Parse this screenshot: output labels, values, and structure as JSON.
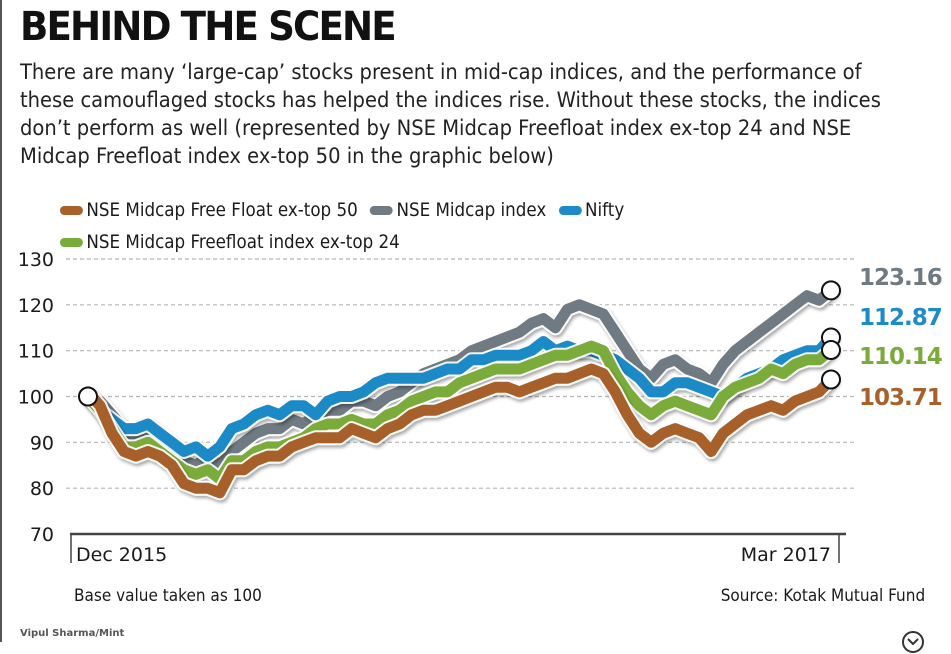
{
  "header": {
    "title": "BEHIND THE SCENE",
    "subtitle_lines": [
      "There are many ‘large-cap’ stocks present in mid-cap indices, and the performance of",
      "these camouflaged stocks has helped the indices rise. Without these stocks, the indices",
      "don’t perform as well (represented by NSE Midcap Freefloat index ex-top 24 and NSE",
      "Midcap Freefloat index ex-top 50 in the graphic below)"
    ]
  },
  "legend": {
    "items": [
      {
        "label": "NSE Midcap Free Float ex-top 50",
        "color": "#a8612b"
      },
      {
        "label": "NSE Midcap index",
        "color": "#6f7a82"
      },
      {
        "label": "Nifty",
        "color": "#1e8ac6"
      },
      {
        "label": "NSE Midcap Freefloat index ex-top 24",
        "color": "#7aab3a"
      }
    ]
  },
  "chart_data": {
    "type": "line",
    "title": "BEHIND THE SCENE",
    "xlabel": "",
    "ylabel": "",
    "ylim": [
      70,
      130
    ],
    "yticks": [
      "130",
      "120",
      "110",
      "100",
      "90",
      "80",
      "70"
    ],
    "ytick_values": [
      130,
      120,
      110,
      100,
      90,
      80,
      70
    ],
    "xticks": [
      "Dec 2015",
      "Mar 2017"
    ],
    "x_range": [
      0,
      1
    ],
    "grid": "horizontal-dashed",
    "series": [
      {
        "name": "NSE Midcap index",
        "color": "#6f7a82",
        "end_label": "123.16",
        "values": [
          100,
          99,
          96,
          93,
          91,
          92,
          90,
          88,
          86,
          85,
          87,
          85,
          88,
          90,
          92,
          93,
          93,
          95,
          94,
          96,
          97,
          97,
          99,
          99,
          98,
          100,
          101,
          103,
          105,
          106,
          107,
          108,
          110,
          111,
          112,
          113,
          114,
          116,
          117,
          115,
          119,
          120,
          119,
          118,
          114,
          110,
          106,
          104,
          107,
          108,
          106,
          105,
          103,
          107,
          110,
          112,
          114,
          116,
          118,
          120,
          122,
          121,
          123.16
        ]
      },
      {
        "name": "Nifty",
        "color": "#1e8ac6",
        "end_label": "112.87",
        "values": [
          100,
          97,
          95,
          93,
          93,
          94,
          92,
          90,
          88,
          89,
          87,
          89,
          93,
          94,
          96,
          97,
          96,
          98,
          98,
          96,
          99,
          100,
          100,
          101,
          103,
          104,
          104,
          104,
          104,
          105,
          106,
          106,
          108,
          108,
          109,
          109,
          109,
          110,
          112,
          110,
          111,
          110,
          110,
          109,
          108,
          106,
          104,
          101,
          101,
          103,
          103,
          102,
          101,
          100,
          102,
          104,
          105,
          106,
          108,
          109,
          110,
          110,
          112.87
        ]
      },
      {
        "name": "NSE Midcap Freefloat index ex-top 24",
        "color": "#7aab3a",
        "end_label": "110.14",
        "values": [
          100,
          97,
          93,
          89,
          89,
          90,
          88,
          86,
          84,
          83,
          84,
          82,
          86,
          86,
          88,
          89,
          89,
          90,
          91,
          93,
          94,
          94,
          95,
          94,
          94,
          96,
          97,
          99,
          100,
          101,
          101,
          103,
          104,
          105,
          106,
          106,
          106,
          107,
          108,
          109,
          109,
          110,
          111,
          110,
          105,
          101,
          98,
          96,
          98,
          99,
          98,
          97,
          96,
          100,
          102,
          103,
          104,
          106,
          105,
          107,
          108,
          108,
          110.14
        ]
      },
      {
        "name": "NSE Midcap Free Float ex-top 50",
        "color": "#a8612b",
        "end_label": "103.71",
        "values": [
          101,
          98,
          92,
          88,
          87,
          88,
          87,
          85,
          81,
          80,
          80,
          79,
          84,
          84,
          86,
          87,
          87,
          89,
          90,
          91,
          91,
          91,
          93,
          92,
          91,
          93,
          94,
          96,
          97,
          97,
          98,
          99,
          100,
          101,
          102,
          102,
          101,
          102,
          103,
          104,
          104,
          105,
          106,
          105,
          101,
          96,
          92,
          90,
          92,
          93,
          92,
          91,
          88,
          92,
          94,
          96,
          97,
          98,
          97,
          99,
          100,
          101,
          103.71
        ]
      }
    ],
    "start_marker_value": 100,
    "base_note": "Base value taken as 100"
  },
  "footer": {
    "base_note": "Base value taken as 100",
    "source": "Source: Kotak Mutual Fund",
    "credit": "Vipul Sharma/Mint"
  },
  "icons": {
    "expand": "chevron-down-circle-icon"
  }
}
